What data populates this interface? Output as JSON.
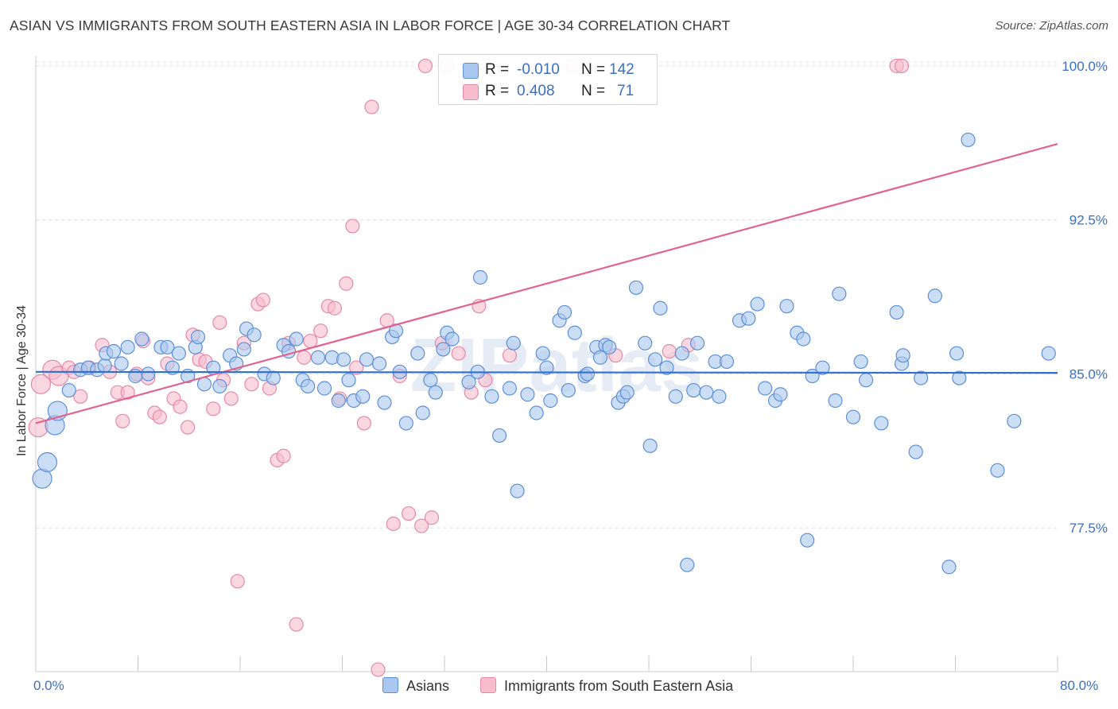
{
  "header": {
    "title": "ASIAN VS IMMIGRANTS FROM SOUTH EASTERN ASIA IN LABOR FORCE | AGE 30-34 CORRELATION CHART",
    "source": "Source: ZipAtlas.com"
  },
  "legend": {
    "rows": [
      {
        "r_label": "R =",
        "r_value": "-0.010",
        "n_label": "N =",
        "n_value": "142"
      },
      {
        "r_label": "R =",
        "r_value": "0.408",
        "n_label": "N =",
        "n_value": "71"
      }
    ],
    "bottom": [
      "Asians",
      "Immigrants from South Eastern Asia"
    ]
  },
  "watermark": "ZIPatlas",
  "colors": {
    "asian_fill": "#aac8ef",
    "asian_stroke": "#5d8fd6",
    "asian_line": "#2f6fd0",
    "immig_fill": "#f7bccd",
    "immig_stroke": "#e58aa6",
    "immig_line": "#e26390",
    "tick_text": "#3a6fc4"
  },
  "chart_data": {
    "type": "scatter",
    "title": "ASIAN VS IMMIGRANTS FROM SOUTH EASTERN ASIA IN LABOR FORCE | AGE 30-34 CORRELATION CHART",
    "xlabel": "",
    "ylabel": "In Labor Force | Age 30-34",
    "xlim": [
      0,
      80
    ],
    "ylim": [
      70.5,
      100.5
    ],
    "x_tick_labels": [
      "0.0%",
      "80.0%"
    ],
    "y_ticks": [
      77.5,
      85.0,
      92.5,
      100.0
    ],
    "y_tick_labels": [
      "77.5%",
      "85.0%",
      "92.5%",
      "100.0%"
    ],
    "grid": "horizontal dashed",
    "series": [
      {
        "name": "Asians",
        "r": -0.01,
        "n": 142,
        "trend": {
          "x": [
            0,
            80
          ],
          "y": [
            85.1,
            85.05
          ]
        },
        "points": [
          [
            0.5,
            79.9
          ],
          [
            0.9,
            80.7
          ],
          [
            1.5,
            82.5
          ],
          [
            1.7,
            83.2
          ],
          [
            2.6,
            84.2
          ],
          [
            3.5,
            85.2
          ],
          [
            4.1,
            85.3
          ],
          [
            4.8,
            85.2
          ],
          [
            5.4,
            85.4
          ],
          [
            5.5,
            86.0
          ],
          [
            6.1,
            86.1
          ],
          [
            6.7,
            85.5
          ],
          [
            7.2,
            86.3
          ],
          [
            7.8,
            84.9
          ],
          [
            8.3,
            86.7
          ],
          [
            8.8,
            85.0
          ],
          [
            9.8,
            86.3
          ],
          [
            10.3,
            86.3
          ],
          [
            10.7,
            85.3
          ],
          [
            11.2,
            86.0
          ],
          [
            11.9,
            84.9
          ],
          [
            12.5,
            86.3
          ],
          [
            12.7,
            86.8
          ],
          [
            13.2,
            84.5
          ],
          [
            13.9,
            85.3
          ],
          [
            14.4,
            84.4
          ],
          [
            15.2,
            85.9
          ],
          [
            15.7,
            85.5
          ],
          [
            16.3,
            86.2
          ],
          [
            16.5,
            87.2
          ],
          [
            17.1,
            86.9
          ],
          [
            17.9,
            85.0
          ],
          [
            18.6,
            84.8
          ],
          [
            19.4,
            86.4
          ],
          [
            19.8,
            86.1
          ],
          [
            20.4,
            86.7
          ],
          [
            20.9,
            84.7
          ],
          [
            21.3,
            84.4
          ],
          [
            22.1,
            85.8
          ],
          [
            22.6,
            84.3
          ],
          [
            23.2,
            85.8
          ],
          [
            23.7,
            83.7
          ],
          [
            24.1,
            85.7
          ],
          [
            24.5,
            84.7
          ],
          [
            24.9,
            83.7
          ],
          [
            25.6,
            83.9
          ],
          [
            25.9,
            85.7
          ],
          [
            26.9,
            85.5
          ],
          [
            27.3,
            83.6
          ],
          [
            27.9,
            86.8
          ],
          [
            28.2,
            87.1
          ],
          [
            28.5,
            85.1
          ],
          [
            29.0,
            82.6
          ],
          [
            29.9,
            86.0
          ],
          [
            30.3,
            83.1
          ],
          [
            30.9,
            84.7
          ],
          [
            31.3,
            84.1
          ],
          [
            31.9,
            86.2
          ],
          [
            32.2,
            87.0
          ],
          [
            32.6,
            86.7
          ],
          [
            33.9,
            84.6
          ],
          [
            34.6,
            85.1
          ],
          [
            34.8,
            89.7
          ],
          [
            35.7,
            83.9
          ],
          [
            36.3,
            82.0
          ],
          [
            37.1,
            84.3
          ],
          [
            37.4,
            86.5
          ],
          [
            37.7,
            79.3
          ],
          [
            38.5,
            84.0
          ],
          [
            39.2,
            83.1
          ],
          [
            39.7,
            86.0
          ],
          [
            40.0,
            85.3
          ],
          [
            40.3,
            83.7
          ],
          [
            41.0,
            87.6
          ],
          [
            41.4,
            88.0
          ],
          [
            41.7,
            84.2
          ],
          [
            42.2,
            87.0
          ],
          [
            43.0,
            84.9
          ],
          [
            43.2,
            85.0
          ],
          [
            43.9,
            86.3
          ],
          [
            44.2,
            85.8
          ],
          [
            44.6,
            86.4
          ],
          [
            44.9,
            86.3
          ],
          [
            45.6,
            83.6
          ],
          [
            46.0,
            83.9
          ],
          [
            46.3,
            84.1
          ],
          [
            47.0,
            89.2
          ],
          [
            47.7,
            86.5
          ],
          [
            48.1,
            81.5
          ],
          [
            48.5,
            85.7
          ],
          [
            48.9,
            88.2
          ],
          [
            49.4,
            85.3
          ],
          [
            50.1,
            83.9
          ],
          [
            50.6,
            86.0
          ],
          [
            51.0,
            75.7
          ],
          [
            51.5,
            84.2
          ],
          [
            51.8,
            86.5
          ],
          [
            52.5,
            84.1
          ],
          [
            53.2,
            85.6
          ],
          [
            53.5,
            83.9
          ],
          [
            54.1,
            85.6
          ],
          [
            55.1,
            87.6
          ],
          [
            55.8,
            87.7
          ],
          [
            56.5,
            88.4
          ],
          [
            57.1,
            84.3
          ],
          [
            57.9,
            83.7
          ],
          [
            58.3,
            84.0
          ],
          [
            58.8,
            88.3
          ],
          [
            59.6,
            87.0
          ],
          [
            60.1,
            86.7
          ],
          [
            60.4,
            76.9
          ],
          [
            60.8,
            84.9
          ],
          [
            61.6,
            85.3
          ],
          [
            62.6,
            83.7
          ],
          [
            62.9,
            88.9
          ],
          [
            64.0,
            82.9
          ],
          [
            64.6,
            85.6
          ],
          [
            65.0,
            84.7
          ],
          [
            66.2,
            82.6
          ],
          [
            67.4,
            88.0
          ],
          [
            67.8,
            85.5
          ],
          [
            67.9,
            85.9
          ],
          [
            68.9,
            81.2
          ],
          [
            69.3,
            84.8
          ],
          [
            70.4,
            88.8
          ],
          [
            71.5,
            75.6
          ],
          [
            72.1,
            86.0
          ],
          [
            72.3,
            84.8
          ],
          [
            73.0,
            96.4
          ],
          [
            75.3,
            80.3
          ],
          [
            76.6,
            82.7
          ],
          [
            79.3,
            86.0
          ]
        ]
      },
      {
        "name": "Immigrants from South Eastern Asia",
        "r": 0.408,
        "n": 71,
        "trend": {
          "x": [
            0,
            80
          ],
          "y": [
            82.6,
            96.2
          ]
        },
        "points": [
          [
            0.2,
            82.4
          ],
          [
            0.4,
            84.5
          ],
          [
            1.3,
            85.2
          ],
          [
            1.8,
            84.9
          ],
          [
            2.6,
            85.3
          ],
          [
            3.0,
            85.1
          ],
          [
            3.5,
            83.9
          ],
          [
            4.2,
            85.3
          ],
          [
            5.2,
            86.4
          ],
          [
            5.8,
            85.1
          ],
          [
            6.4,
            84.1
          ],
          [
            6.8,
            82.7
          ],
          [
            7.2,
            84.1
          ],
          [
            7.9,
            85.0
          ],
          [
            8.4,
            86.6
          ],
          [
            8.8,
            84.8
          ],
          [
            9.3,
            83.1
          ],
          [
            9.7,
            82.9
          ],
          [
            10.3,
            85.5
          ],
          [
            10.8,
            83.8
          ],
          [
            11.3,
            83.4
          ],
          [
            11.9,
            82.4
          ],
          [
            12.3,
            86.9
          ],
          [
            12.8,
            85.7
          ],
          [
            13.3,
            85.6
          ],
          [
            13.9,
            83.3
          ],
          [
            14.4,
            87.5
          ],
          [
            14.7,
            84.7
          ],
          [
            15.3,
            83.8
          ],
          [
            15.8,
            74.9
          ],
          [
            16.3,
            86.5
          ],
          [
            16.9,
            84.5
          ],
          [
            17.4,
            88.4
          ],
          [
            17.8,
            88.6
          ],
          [
            18.3,
            84.3
          ],
          [
            18.9,
            80.8
          ],
          [
            19.4,
            81.0
          ],
          [
            19.8,
            86.5
          ],
          [
            20.4,
            72.8
          ],
          [
            21.0,
            85.8
          ],
          [
            21.5,
            86.6
          ],
          [
            22.3,
            87.1
          ],
          [
            22.9,
            88.3
          ],
          [
            23.4,
            88.2
          ],
          [
            23.8,
            83.8
          ],
          [
            24.3,
            89.4
          ],
          [
            24.8,
            92.2
          ],
          [
            25.1,
            85.3
          ],
          [
            25.7,
            82.6
          ],
          [
            26.3,
            98.0
          ],
          [
            26.8,
            70.6
          ],
          [
            27.5,
            87.6
          ],
          [
            28.0,
            77.7
          ],
          [
            28.5,
            84.9
          ],
          [
            29.2,
            78.2
          ],
          [
            30.2,
            77.6
          ],
          [
            30.5,
            100.0
          ],
          [
            31.0,
            78.0
          ],
          [
            31.8,
            86.5
          ],
          [
            32.2,
            100.0
          ],
          [
            33.1,
            86.0
          ],
          [
            34.1,
            84.1
          ],
          [
            34.7,
            88.3
          ],
          [
            35.2,
            84.7
          ],
          [
            37.1,
            85.9
          ],
          [
            42.1,
            100.0
          ],
          [
            45.4,
            85.9
          ],
          [
            49.6,
            86.1
          ],
          [
            51.1,
            86.4
          ],
          [
            67.4,
            100.0
          ],
          [
            67.8,
            100.0
          ]
        ]
      }
    ]
  }
}
